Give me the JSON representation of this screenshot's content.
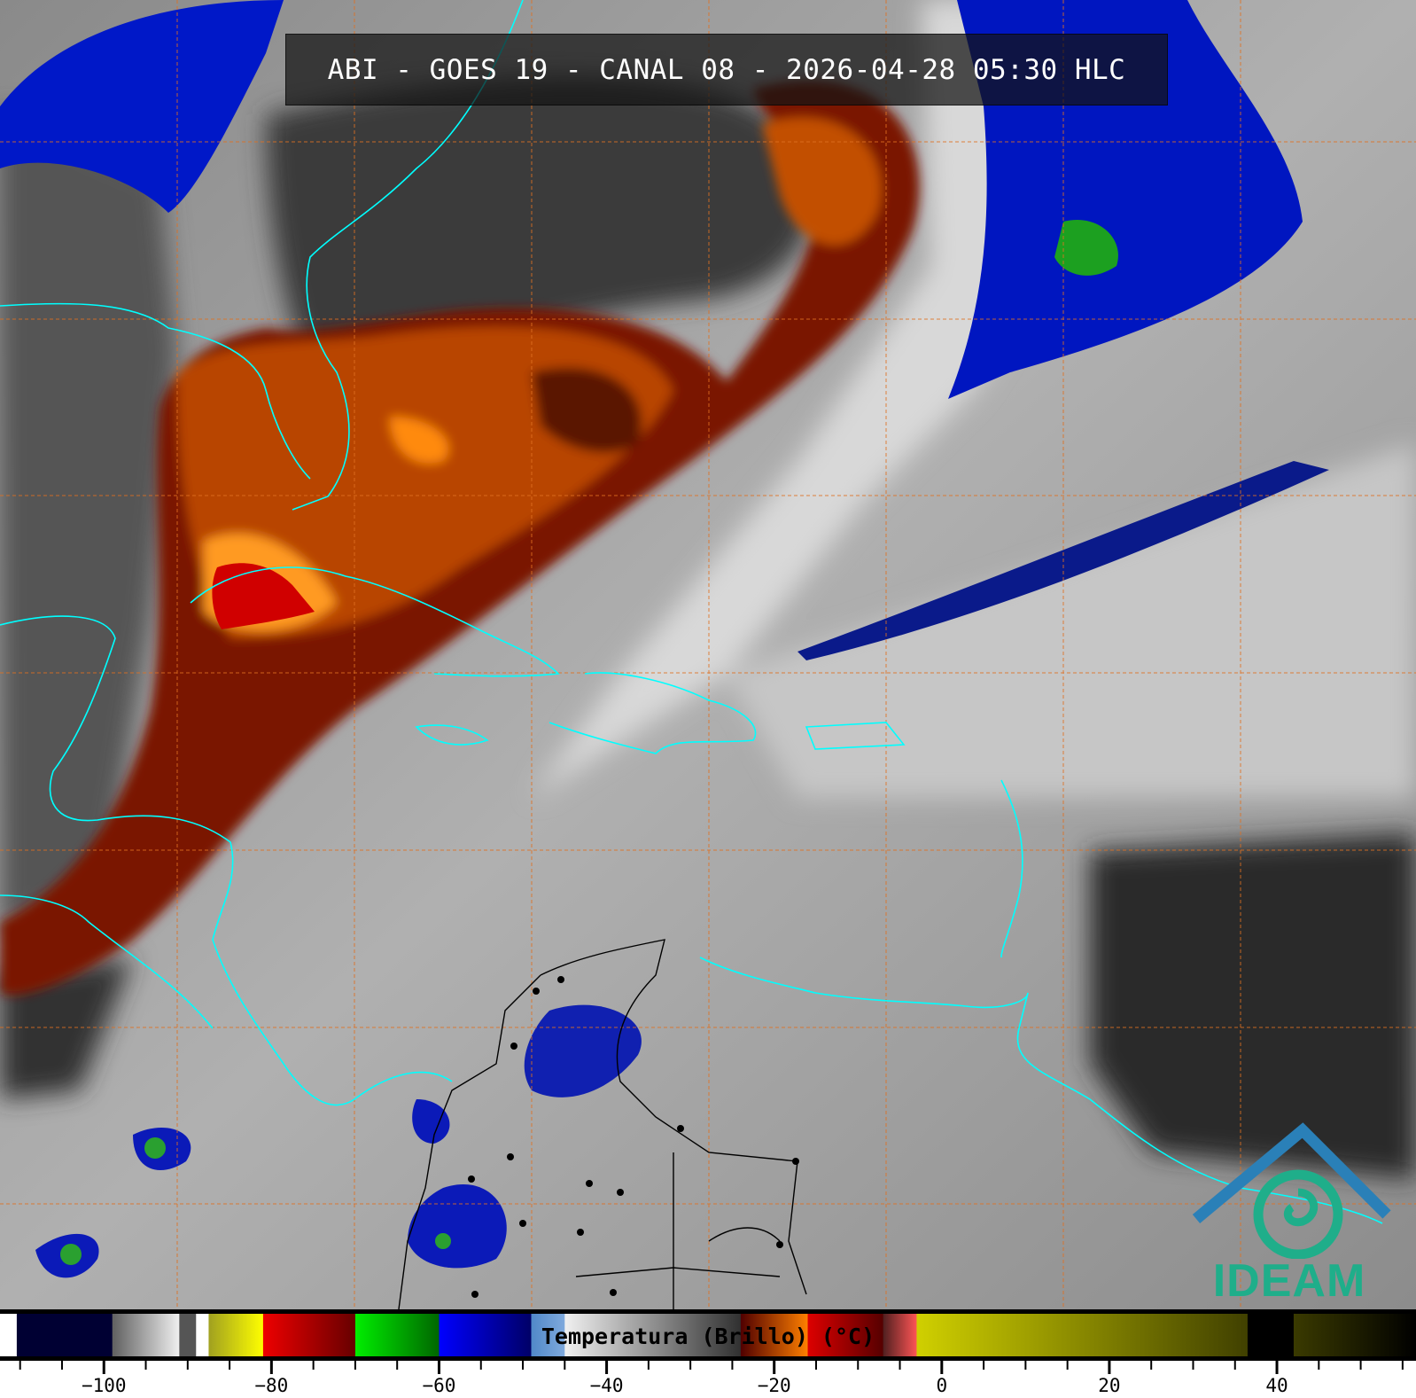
{
  "title": "ABI - GOES 19 - CANAL 08 - 2026-04-28 05:30 HLC",
  "logo_text": "IDEAM",
  "colorbar": {
    "label": "Temperatura (Brillo) (°C)",
    "range": [
      -112.4,
      56.6
    ],
    "major_ticks": [
      -100,
      -80,
      -60,
      -40,
      -20,
      0,
      20,
      40
    ],
    "tick_labels": [
      "−100",
      "−80",
      "−60",
      "−40",
      "−20",
      "0",
      "20",
      "40"
    ],
    "minor_step": 5,
    "segments": [
      {
        "from": -112.4,
        "to": -110.4,
        "colors": [
          "#ffffff",
          "#ffffff"
        ]
      },
      {
        "from": -110.4,
        "to": -99,
        "colors": [
          "#000033",
          "#000033"
        ]
      },
      {
        "from": -99,
        "to": -91,
        "colors": [
          "#606060",
          "#f0f0f0"
        ]
      },
      {
        "from": -91,
        "to": -89,
        "colors": [
          "#555555",
          "#555555"
        ]
      },
      {
        "from": -89,
        "to": -87.5,
        "colors": [
          "#ffffff",
          "#ffffff"
        ]
      },
      {
        "from": -87.5,
        "to": -81,
        "colors": [
          "#a0a020",
          "#ffff00"
        ]
      },
      {
        "from": -81,
        "to": -70,
        "colors": [
          "#ee0000",
          "#660000"
        ]
      },
      {
        "from": -70,
        "to": -60,
        "colors": [
          "#00ee00",
          "#006600"
        ]
      },
      {
        "from": -60,
        "to": -49,
        "colors": [
          "#0000ff",
          "#000066"
        ]
      },
      {
        "from": -49,
        "to": -45,
        "colors": [
          "#5088c8",
          "#80aadd"
        ]
      },
      {
        "from": -45,
        "to": -24,
        "colors": [
          "#f0f0f0",
          "#303030"
        ]
      },
      {
        "from": -24,
        "to": -16,
        "colors": [
          "#500000",
          "#ff8000"
        ]
      },
      {
        "from": -16,
        "to": -7,
        "colors": [
          "#dd0000",
          "#550000"
        ]
      },
      {
        "from": -7,
        "to": -3,
        "colors": [
          "#502020",
          "#ff5555"
        ]
      },
      {
        "from": -3,
        "to": 36.5,
        "colors": [
          "#d0d000",
          "#404000"
        ]
      },
      {
        "from": 36.5,
        "to": 42,
        "colors": [
          "#000000",
          "#000000"
        ]
      },
      {
        "from": 42,
        "to": 56.6,
        "colors": [
          "#3a3a00",
          "#000000"
        ]
      }
    ]
  },
  "colors": {
    "coastline": "#00ffff",
    "borders": "#000000",
    "grid": "#e07020",
    "logo": "#1fae8a"
  }
}
